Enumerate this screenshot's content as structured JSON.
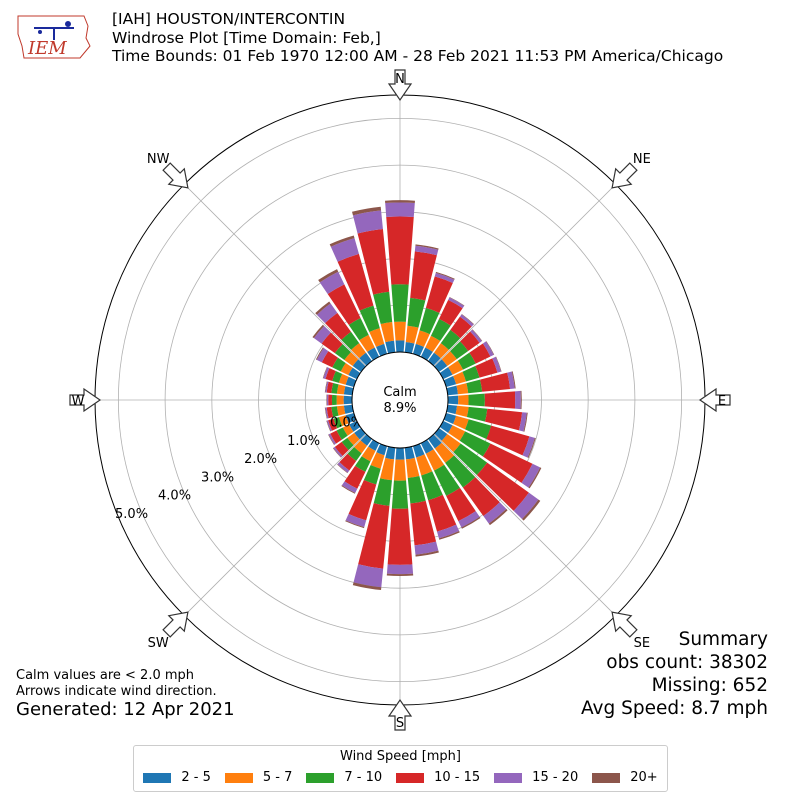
{
  "header": {
    "line1": "[IAH] HOUSTON/INTERCONTIN",
    "line2": "Windrose Plot [Time Domain: Feb,]",
    "line3": "Time Bounds: 01 Feb 1970 12:00 AM - 28 Feb 2021 11:53 PM America/Chicago"
  },
  "logo": {
    "text": "IEM"
  },
  "notes": {
    "calm_note": "Calm values are < 2.0 mph",
    "arrow_note": "Arrows indicate wind direction.",
    "generated": "Generated: 12 Apr 2021"
  },
  "summary": {
    "title": "Summary",
    "obs_count": "obs count: 38302",
    "missing": "Missing: 652",
    "avg_speed": "Avg Speed: 8.7 mph"
  },
  "legend": {
    "title": "Wind Speed [mph]",
    "items": [
      "2 - 5",
      "5 - 7",
      "7 - 10",
      "10 - 15",
      "15 - 20",
      "20+"
    ]
  },
  "chart_data": {
    "type": "windrose",
    "calm_label": "Calm",
    "calm_value": "8.9%",
    "radial_ticks": [
      "0.0%",
      "1.0%",
      "2.0%",
      "3.0%",
      "4.0%",
      "5.0%"
    ],
    "radial_max": 5.5,
    "compass_labels": [
      "N",
      "NE",
      "E",
      "SE",
      "S",
      "SW",
      "W",
      "NW"
    ],
    "bin_colors": [
      "#1f77b4",
      "#ff7f0e",
      "#2ca02c",
      "#d62728",
      "#9467bd",
      "#8c564b"
    ],
    "directions_deg": [
      0,
      10,
      20,
      30,
      40,
      50,
      60,
      70,
      80,
      90,
      100,
      110,
      120,
      130,
      140,
      150,
      160,
      170,
      180,
      190,
      200,
      210,
      220,
      230,
      240,
      250,
      260,
      270,
      280,
      290,
      300,
      310,
      320,
      330,
      340,
      350
    ],
    "series": [
      {
        "name": "2 - 5",
        "values": [
          0.25,
          0.22,
          0.22,
          0.22,
          0.22,
          0.22,
          0.22,
          0.22,
          0.22,
          0.22,
          0.2,
          0.22,
          0.22,
          0.22,
          0.25,
          0.25,
          0.25,
          0.25,
          0.25,
          0.25,
          0.2,
          0.18,
          0.18,
          0.18,
          0.18,
          0.18,
          0.18,
          0.18,
          0.18,
          0.18,
          0.2,
          0.22,
          0.22,
          0.22,
          0.22,
          0.25
        ]
      },
      {
        "name": "5 - 7",
        "values": [
          0.4,
          0.35,
          0.3,
          0.28,
          0.25,
          0.25,
          0.25,
          0.22,
          0.22,
          0.22,
          0.25,
          0.28,
          0.3,
          0.35,
          0.38,
          0.4,
          0.4,
          0.4,
          0.45,
          0.45,
          0.3,
          0.25,
          0.2,
          0.18,
          0.15,
          0.15,
          0.15,
          0.15,
          0.15,
          0.15,
          0.18,
          0.22,
          0.25,
          0.3,
          0.35,
          0.4
        ]
      },
      {
        "name": "7 - 10",
        "values": [
          0.8,
          0.6,
          0.5,
          0.4,
          0.35,
          0.3,
          0.3,
          0.3,
          0.3,
          0.35,
          0.4,
          0.5,
          0.6,
          0.7,
          0.65,
          0.6,
          0.55,
          0.55,
          0.6,
          0.55,
          0.35,
          0.25,
          0.2,
          0.15,
          0.15,
          0.12,
          0.12,
          0.1,
          0.12,
          0.15,
          0.2,
          0.25,
          0.3,
          0.4,
          0.5,
          0.65
        ]
      },
      {
        "name": "10 - 15",
        "values": [
          1.45,
          1.0,
          0.7,
          0.45,
          0.35,
          0.3,
          0.35,
          0.4,
          0.6,
          0.65,
          0.75,
          0.85,
          1.0,
          1.1,
          0.75,
          0.6,
          0.7,
          0.9,
          1.2,
          1.35,
          0.8,
          0.4,
          0.25,
          0.18,
          0.15,
          0.12,
          0.1,
          0.08,
          0.1,
          0.15,
          0.25,
          0.35,
          0.5,
          0.8,
          1.15,
          1.35
        ]
      },
      {
        "name": "15 - 20",
        "values": [
          0.3,
          0.12,
          0.08,
          0.06,
          0.06,
          0.06,
          0.08,
          0.08,
          0.1,
          0.12,
          0.1,
          0.12,
          0.18,
          0.25,
          0.2,
          0.15,
          0.15,
          0.2,
          0.2,
          0.4,
          0.15,
          0.1,
          0.06,
          0.04,
          0.04,
          0.03,
          0.03,
          0.03,
          0.03,
          0.05,
          0.12,
          0.2,
          0.25,
          0.3,
          0.35,
          0.4
        ]
      },
      {
        "name": "20+",
        "values": [
          0.05,
          0.03,
          0.02,
          0.01,
          0.01,
          0.01,
          0.01,
          0.01,
          0.02,
          0.02,
          0.02,
          0.02,
          0.03,
          0.05,
          0.04,
          0.03,
          0.03,
          0.04,
          0.04,
          0.06,
          0.02,
          0.02,
          0.01,
          0.01,
          0.01,
          0.01,
          0.01,
          0.01,
          0.01,
          0.01,
          0.02,
          0.04,
          0.05,
          0.06,
          0.06,
          0.08
        ]
      }
    ]
  }
}
